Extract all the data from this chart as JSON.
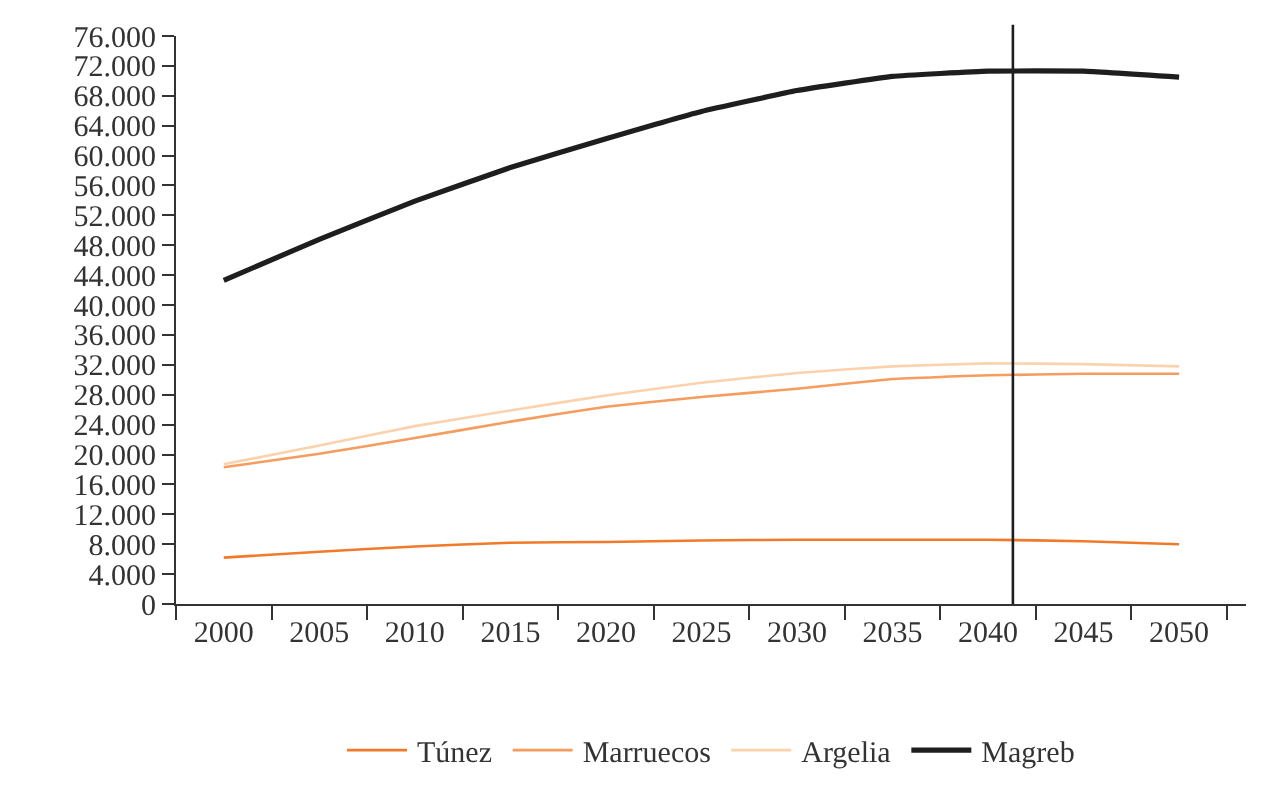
{
  "chart_data": {
    "type": "line",
    "x": [
      2000,
      2005,
      2010,
      2015,
      2020,
      2025,
      2030,
      2035,
      2040,
      2045,
      2050
    ],
    "series": [
      {
        "name": "Túnez",
        "color": "#f07a2a",
        "values": [
          6200,
          7000,
          7700,
          8200,
          8300,
          8500,
          8600,
          8600,
          8600,
          8400,
          8000
        ]
      },
      {
        "name": "Marruecos",
        "color": "#f59c5e",
        "values": [
          18300,
          20100,
          22200,
          24400,
          26400,
          27700,
          28800,
          30100,
          30600,
          30800,
          30800
        ]
      },
      {
        "name": "Argelia",
        "color": "#fcd2ad",
        "values": [
          18700,
          21200,
          23800,
          25900,
          27900,
          29600,
          30900,
          31800,
          32200,
          32100,
          31800
        ]
      },
      {
        "name": "Magreb",
        "color": "#1e1e1e",
        "values": [
          43300,
          48800,
          53900,
          58400,
          62250,
          65900,
          68700,
          70600,
          71300,
          71300,
          70500
        ]
      }
    ],
    "xlim": [
      1997.5,
      2053.5
    ],
    "xticks": [
      2000,
      2005,
      2010,
      2015,
      2020,
      2025,
      2030,
      2035,
      2040,
      2045,
      2050
    ],
    "ylim": [
      0,
      76000
    ],
    "yticks": [
      {
        "value": 0,
        "label": "0"
      },
      {
        "value": 4000,
        "label": "4.000"
      },
      {
        "value": 8000,
        "label": "8.000"
      },
      {
        "value": 12000,
        "label": "12.000"
      },
      {
        "value": 16000,
        "label": "16.000"
      },
      {
        "value": 20000,
        "label": "20.000"
      },
      {
        "value": 24000,
        "label": "24.000"
      },
      {
        "value": 28000,
        "label": "28.000"
      },
      {
        "value": 32000,
        "label": "32.000"
      },
      {
        "value": 36000,
        "label": "36.000"
      },
      {
        "value": 40000,
        "label": "40.000"
      },
      {
        "value": 44000,
        "label": "44.000"
      },
      {
        "value": 48000,
        "label": "48.000"
      },
      {
        "value": 52000,
        "label": "52.000"
      },
      {
        "value": 56000,
        "label": "56.000"
      },
      {
        "value": 60000,
        "label": "60.000"
      },
      {
        "value": 64000,
        "label": "64.000"
      },
      {
        "value": 68000,
        "label": "68.000"
      },
      {
        "value": 72000,
        "label": "72.000"
      },
      {
        "value": 76000,
        "label": "76.000"
      }
    ],
    "ref_lines": [
      {
        "axis": "x",
        "value": 2041.3,
        "color": "#1e1e1e"
      }
    ],
    "grid": false,
    "legend": "bottom",
    "marker": "none",
    "line_style": "solid"
  }
}
